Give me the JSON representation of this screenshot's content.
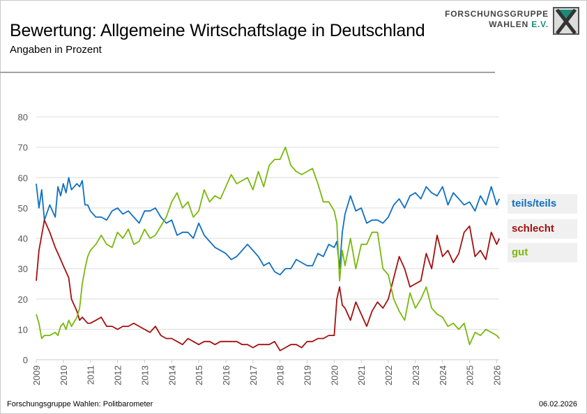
{
  "header": {
    "title": "Bewertung: Allgemeine Wirtschaftslage in Deutschland",
    "subtitle": "Angaben in Prozent"
  },
  "logo": {
    "line1": "FORSCHUNGSGRUPPE",
    "line2_main": "WAHLEN",
    "line2_accent": "E.V."
  },
  "footer": {
    "source": "Forschungsgruppe Wahlen: Politbarometer",
    "date": "06.02.2026"
  },
  "chart_data": {
    "type": "line",
    "title": "Bewertung: Allgemeine Wirtschaftslage in Deutschland",
    "subtitle": "Angaben in Prozent",
    "xlabel": "",
    "ylabel": "",
    "ylim": [
      0,
      80
    ],
    "yticks": [
      "0",
      "10",
      "20",
      "30",
      "40",
      "50",
      "60",
      "70",
      "80"
    ],
    "xlim": [
      2009,
      2026.1
    ],
    "xticks": [
      "2009",
      "2010",
      "2011",
      "2012",
      "2013",
      "2014",
      "2015",
      "2016",
      "2017",
      "2018",
      "2019",
      "2020",
      "2021",
      "2022",
      "2023",
      "2024",
      "2025",
      "2026"
    ],
    "grid": true,
    "legend_position": "right",
    "series": [
      {
        "name": "teils/teils",
        "color": "#0f6fc0",
        "x": [
          2009.0,
          2009.1,
          2009.2,
          2009.3,
          2009.5,
          2009.7,
          2009.8,
          2009.9,
          2010.0,
          2010.1,
          2010.2,
          2010.3,
          2010.5,
          2010.6,
          2010.7,
          2010.8,
          2010.9,
          2011.0,
          2011.2,
          2011.4,
          2011.6,
          2011.8,
          2012.0,
          2012.2,
          2012.4,
          2012.6,
          2012.8,
          2013.0,
          2013.2,
          2013.4,
          2013.6,
          2013.8,
          2014.0,
          2014.2,
          2014.4,
          2014.6,
          2014.8,
          2015.0,
          2015.2,
          2015.4,
          2015.6,
          2015.8,
          2016.0,
          2016.2,
          2016.4,
          2016.6,
          2016.8,
          2017.0,
          2017.2,
          2017.4,
          2017.6,
          2017.8,
          2018.0,
          2018.2,
          2018.4,
          2018.6,
          2018.8,
          2019.0,
          2019.2,
          2019.4,
          2019.6,
          2019.8,
          2020.0,
          2020.1,
          2020.2,
          2020.3,
          2020.4,
          2020.6,
          2020.8,
          2021.0,
          2021.2,
          2021.4,
          2021.6,
          2021.8,
          2022.0,
          2022.2,
          2022.4,
          2022.6,
          2022.8,
          2023.0,
          2023.2,
          2023.4,
          2023.6,
          2023.8,
          2024.0,
          2024.2,
          2024.4,
          2024.6,
          2024.8,
          2025.0,
          2025.2,
          2025.4,
          2025.6,
          2025.8,
          2026.0,
          2026.1
        ],
        "values": [
          58,
          50,
          56,
          46,
          51,
          47,
          57,
          54,
          58,
          55,
          60,
          56,
          58,
          57,
          59,
          51,
          51,
          49,
          47,
          47,
          46,
          49,
          50,
          48,
          49,
          47,
          45,
          49,
          49,
          50,
          47,
          45,
          46,
          41,
          42,
          42,
          40,
          45,
          41,
          39,
          37,
          36,
          35,
          33,
          34,
          36,
          38,
          36,
          34,
          31,
          32,
          29,
          28,
          30,
          30,
          33,
          32,
          31,
          31,
          35,
          34,
          38,
          37,
          39,
          30,
          42,
          48,
          54,
          49,
          50,
          45,
          46,
          46,
          45,
          47,
          51,
          53,
          50,
          54,
          55,
          53,
          57,
          55,
          54,
          57,
          51,
          55,
          53,
          51,
          52,
          49,
          54,
          51,
          57,
          51,
          53
        ]
      },
      {
        "name": "schlecht",
        "color": "#a30f0f",
        "x": [
          2009.0,
          2009.1,
          2009.2,
          2009.3,
          2009.5,
          2009.7,
          2009.8,
          2009.9,
          2010.0,
          2010.1,
          2010.2,
          2010.3,
          2010.5,
          2010.6,
          2010.7,
          2010.8,
          2010.9,
          2011.0,
          2011.2,
          2011.4,
          2011.6,
          2011.8,
          2012.0,
          2012.2,
          2012.4,
          2012.6,
          2012.8,
          2013.0,
          2013.2,
          2013.4,
          2013.6,
          2013.8,
          2014.0,
          2014.2,
          2014.4,
          2014.6,
          2014.8,
          2015.0,
          2015.2,
          2015.4,
          2015.6,
          2015.8,
          2016.0,
          2016.2,
          2016.4,
          2016.6,
          2016.8,
          2017.0,
          2017.2,
          2017.4,
          2017.6,
          2017.8,
          2018.0,
          2018.2,
          2018.4,
          2018.6,
          2018.8,
          2019.0,
          2019.2,
          2019.4,
          2019.6,
          2019.8,
          2020.0,
          2020.1,
          2020.2,
          2020.3,
          2020.4,
          2020.6,
          2020.8,
          2021.0,
          2021.2,
          2021.4,
          2021.6,
          2021.8,
          2022.0,
          2022.2,
          2022.4,
          2022.6,
          2022.8,
          2023.0,
          2023.2,
          2023.4,
          2023.6,
          2023.8,
          2024.0,
          2024.2,
          2024.4,
          2024.6,
          2024.8,
          2025.0,
          2025.2,
          2025.4,
          2025.6,
          2025.8,
          2026.0,
          2026.1
        ],
        "values": [
          26,
          36,
          41,
          46,
          42,
          37,
          35,
          33,
          31,
          29,
          27,
          20,
          16,
          13,
          14,
          13,
          12,
          12,
          13,
          14,
          11,
          11,
          10,
          11,
          11,
          12,
          11,
          10,
          9,
          11,
          8,
          7,
          7,
          6,
          5,
          7,
          6,
          5,
          6,
          6,
          5,
          6,
          6,
          6,
          6,
          5,
          5,
          4,
          5,
          5,
          5,
          6,
          3,
          4,
          5,
          5,
          4,
          6,
          6,
          7,
          7,
          8,
          8,
          20,
          24,
          18,
          17,
          13,
          19,
          15,
          11,
          16,
          19,
          17,
          20,
          27,
          34,
          30,
          24,
          25,
          26,
          35,
          30,
          41,
          34,
          36,
          32,
          35,
          42,
          44,
          34,
          36,
          33,
          42,
          38,
          40
        ]
      },
      {
        "name": "gut",
        "color": "#79b80a",
        "x": [
          2009.0,
          2009.1,
          2009.2,
          2009.3,
          2009.5,
          2009.7,
          2009.8,
          2009.9,
          2010.0,
          2010.1,
          2010.2,
          2010.3,
          2010.5,
          2010.6,
          2010.7,
          2010.8,
          2010.9,
          2011.0,
          2011.2,
          2011.4,
          2011.6,
          2011.8,
          2012.0,
          2012.2,
          2012.4,
          2012.6,
          2012.8,
          2013.0,
          2013.2,
          2013.4,
          2013.6,
          2013.8,
          2014.0,
          2014.2,
          2014.4,
          2014.6,
          2014.8,
          2015.0,
          2015.2,
          2015.4,
          2015.6,
          2015.8,
          2016.0,
          2016.2,
          2016.4,
          2016.6,
          2016.8,
          2017.0,
          2017.2,
          2017.4,
          2017.6,
          2017.8,
          2018.0,
          2018.2,
          2018.4,
          2018.6,
          2018.8,
          2019.0,
          2019.2,
          2019.4,
          2019.6,
          2019.8,
          2020.0,
          2020.1,
          2020.2,
          2020.3,
          2020.4,
          2020.6,
          2020.8,
          2021.0,
          2021.2,
          2021.4,
          2021.6,
          2021.8,
          2022.0,
          2022.2,
          2022.4,
          2022.6,
          2022.8,
          2023.0,
          2023.2,
          2023.4,
          2023.6,
          2023.8,
          2024.0,
          2024.2,
          2024.4,
          2024.6,
          2024.8,
          2025.0,
          2025.2,
          2025.4,
          2025.6,
          2025.8,
          2026.0,
          2026.1
        ],
        "values": [
          15,
          12,
          7,
          8,
          8,
          9,
          8,
          11,
          12,
          10,
          13,
          11,
          14,
          17,
          25,
          30,
          34,
          36,
          38,
          41,
          38,
          37,
          42,
          40,
          43,
          38,
          39,
          43,
          40,
          41,
          44,
          47,
          52,
          55,
          50,
          52,
          47,
          49,
          56,
          52,
          54,
          53,
          57,
          61,
          58,
          59,
          60,
          56,
          62,
          57,
          64,
          66,
          66,
          70,
          64,
          62,
          61,
          62,
          63,
          58,
          52,
          52,
          49,
          45,
          26,
          36,
          31,
          40,
          30,
          38,
          38,
          42,
          42,
          30,
          28,
          20,
          16,
          13,
          22,
          17,
          20,
          24,
          17,
          15,
          14,
          11,
          12,
          10,
          12,
          5,
          9,
          8,
          10,
          9,
          8,
          7
        ]
      }
    ]
  },
  "legend": [
    {
      "label": "teils/teils",
      "color": "#0f6fc0"
    },
    {
      "label": "schlecht",
      "color": "#a30f0f"
    },
    {
      "label": "gut",
      "color": "#79b80a"
    }
  ]
}
